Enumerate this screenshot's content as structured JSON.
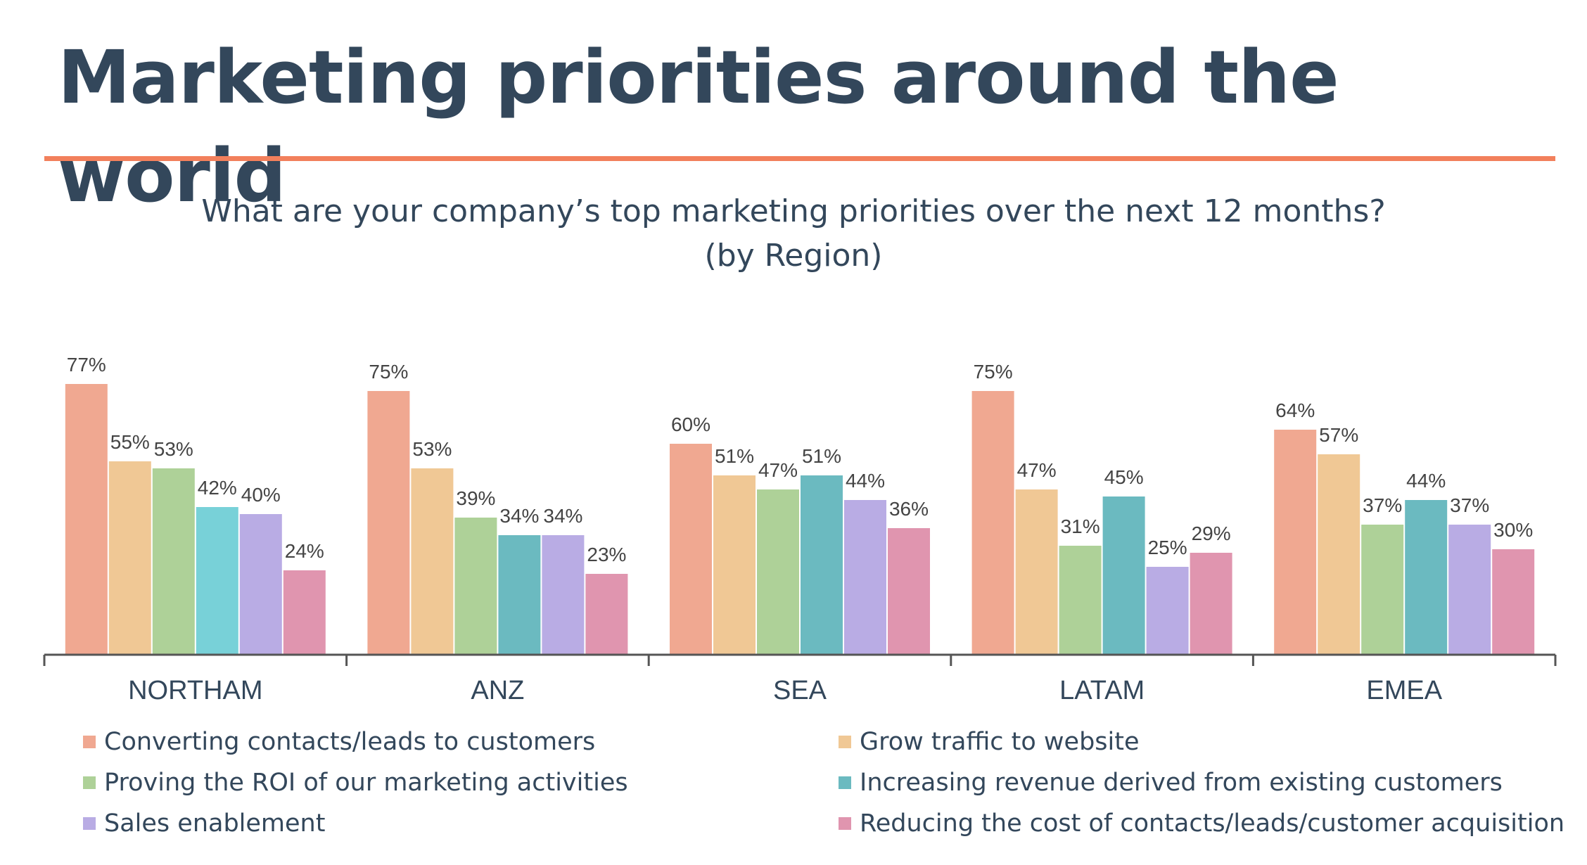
{
  "title": "Marketing priorities around the world",
  "subtitle_line1": "What are your company’s top marketing priorities over the next 12 months?",
  "subtitle_line2": "(by Region)",
  "colors": {
    "title": "#33475b",
    "divider": "#f2805c",
    "axis": "#555555"
  },
  "chart_data": {
    "type": "bar",
    "title": "What are your company’s top marketing priorities over the next 12 months? (by Region)",
    "xlabel": "",
    "ylabel": "",
    "ylim": [
      0,
      80
    ],
    "grid": false,
    "legend_position": "bottom",
    "value_format": "percent",
    "categories": [
      "NORTHAM",
      "ANZ",
      "SEA",
      "LATAM",
      "EMEA"
    ],
    "series": [
      {
        "name": "Converting contacts/leads to customers",
        "color": "#f0a891",
        "values": [
          77,
          75,
          60,
          75,
          64
        ]
      },
      {
        "name": "Grow traffic to website",
        "color": "#f0c895",
        "values": [
          55,
          53,
          51,
          47,
          57
        ]
      },
      {
        "name": "Proving the ROI of our marketing activities",
        "color": "#aed198",
        "values": [
          53,
          39,
          47,
          31,
          37
        ]
      },
      {
        "name": "Increasing revenue derived from existing customers",
        "color": "#6bbac0",
        "values": [
          42,
          34,
          51,
          45,
          44
        ]
      },
      {
        "name": "Sales enablement",
        "color": "#b9ace4",
        "values": [
          40,
          34,
          44,
          25,
          37
        ]
      },
      {
        "name": "Reducing the cost of contacts/leads/customer acquisition",
        "color": "#e095af",
        "values": [
          24,
          23,
          36,
          29,
          30
        ]
      }
    ],
    "special_colors": [
      {
        "category": "NORTHAM",
        "series": "Increasing revenue derived from existing customers",
        "color": "#78d1d8"
      }
    ]
  }
}
